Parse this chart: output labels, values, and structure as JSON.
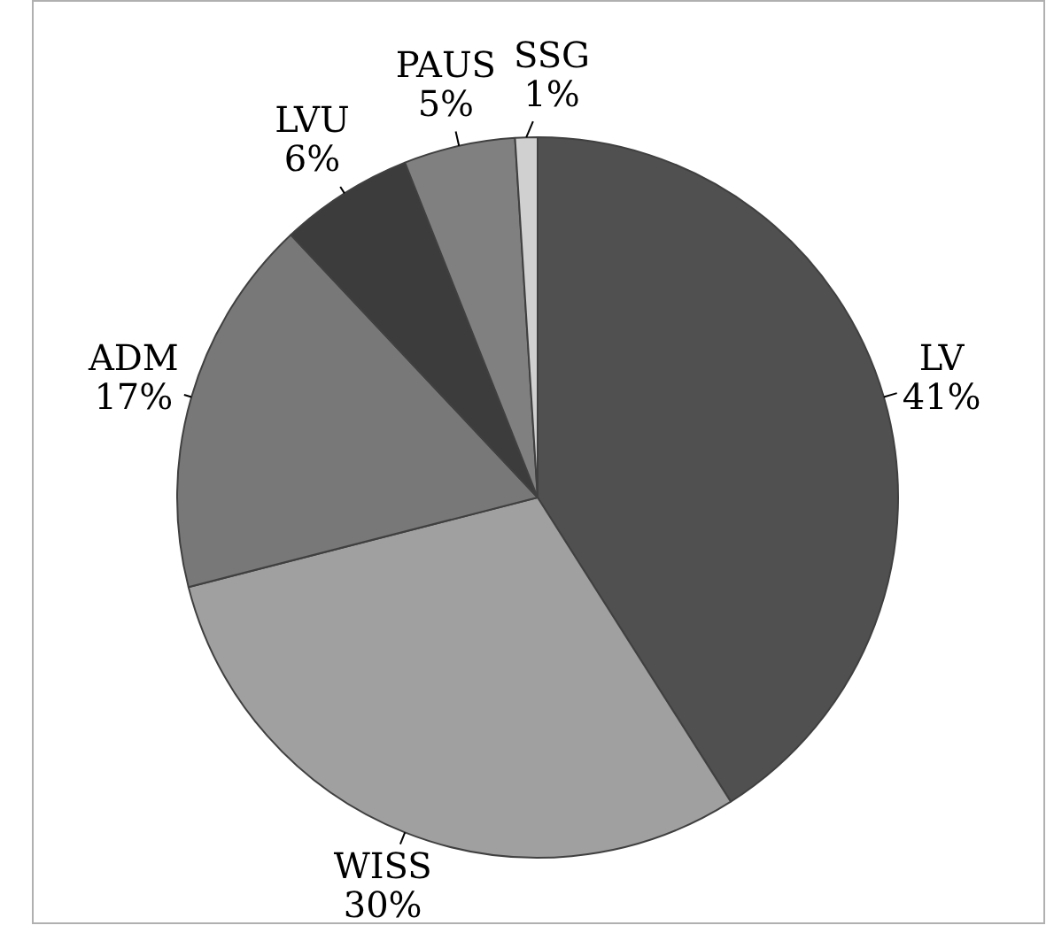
{
  "chart_data": {
    "type": "pie",
    "categories": [
      "LV",
      "WISS",
      "ADM",
      "LVU",
      "PAUS",
      "SSG"
    ],
    "values": [
      41,
      30,
      17,
      6,
      5,
      1
    ],
    "colors": [
      "#505050",
      "#a0a0a0",
      "#787878",
      "#3c3c3c",
      "#808080",
      "#d0d0d0"
    ],
    "value_labels": [
      "41%",
      "30%",
      "17%",
      "6%",
      "5%",
      "1%"
    ],
    "legend": false
  }
}
